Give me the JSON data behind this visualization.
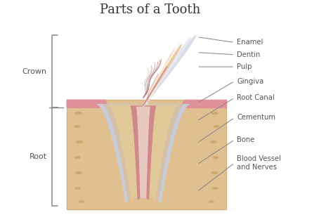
{
  "title": "Parts of a Tooth",
  "title_fontsize": 13,
  "background_color": "#ffffff",
  "colors": {
    "enamel_outer": "#dcdce8",
    "enamel_mid": "#e8e8f2",
    "enamel_white": "#f5f5fa",
    "dentin": "#e8c9a0",
    "dentin_light": "#f0d8b0",
    "pulp_chamber": "#d49090",
    "pulp_inner": "#c88080",
    "root_canal_fill": "#e8d0c8",
    "root_outer_gray": "#c8ccd8",
    "root_cementum": "#d4c0a8",
    "root_dentin": "#e0c898",
    "root_pulp": "#d08888",
    "root_canal_center": "#e8c8c0",
    "bone": "#e0c090",
    "bone_spot": "#c8a060",
    "gingiva_pink": "#e09098",
    "gingiva_dark": "#cc7080",
    "bracket_color": "#888888",
    "line_color": "#999999",
    "text_color": "#555555",
    "annot_line_color": "#888888"
  },
  "crown_label": "Crown",
  "root_label": "Root",
  "labels": [
    "Enamel",
    "Dentin",
    "Pulp",
    "Gingiva",
    "Root Canal",
    "Cementum",
    "Bone",
    "Blood Vessel\nand Nerves"
  ]
}
